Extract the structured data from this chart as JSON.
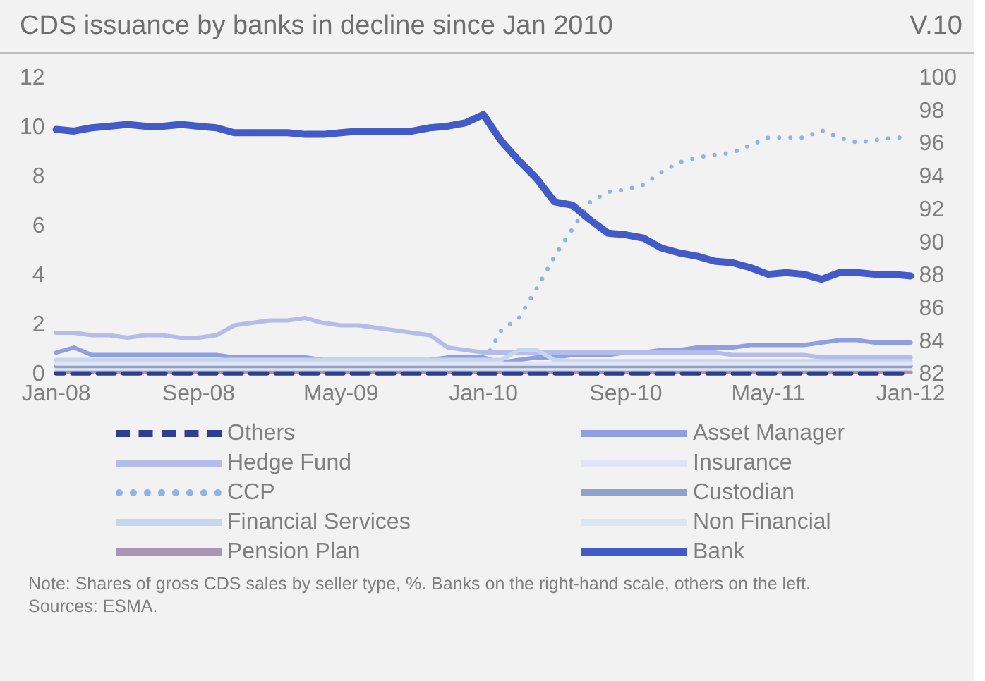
{
  "chart_data": {
    "type": "line",
    "title": "CDS issuance by banks in decline since Jan 2010",
    "subtitle": "V.10",
    "categories": [
      "Jan-08",
      null,
      null,
      null,
      null,
      null,
      null,
      null,
      "Sep-08",
      null,
      null,
      null,
      null,
      null,
      null,
      null,
      "May-09",
      null,
      null,
      null,
      null,
      null,
      null,
      null,
      "Jan-10",
      null,
      null,
      null,
      null,
      null,
      null,
      null,
      "Sep-10",
      null,
      null,
      null,
      null,
      null,
      null,
      null,
      "May-11",
      null,
      null,
      null,
      null,
      null,
      null,
      null,
      "Jan-12"
    ],
    "series": [
      {
        "name": "Others",
        "color": "#2f3f8f",
        "line_style": "dashed",
        "values": [
          0.05,
          0.05,
          0.05,
          0.05,
          0.05,
          0.05,
          0.05,
          0.05,
          0.05,
          0.05,
          0.05,
          0.05,
          0.05,
          0.05,
          0.05,
          0.05,
          0.05,
          0.05,
          0.05,
          0.05,
          0.05,
          0.05,
          0.05,
          0.05,
          0.05,
          0.05,
          0.05,
          0.05,
          0.05,
          0.05,
          0.05,
          0.05,
          0.05,
          0.05,
          0.05,
          0.05,
          0.05,
          0.05,
          0.05,
          0.05,
          0.05,
          0.05,
          0.05,
          0.05,
          0.05,
          0.05,
          0.05,
          0.05,
          0.05
        ]
      },
      {
        "name": "Asset Manager",
        "color": "#8f9fdf",
        "values": [
          0.9,
          1.1,
          0.8,
          0.8,
          0.8,
          0.8,
          0.8,
          0.8,
          0.8,
          0.8,
          0.7,
          0.7,
          0.7,
          0.7,
          0.7,
          0.6,
          0.6,
          0.6,
          0.6,
          0.6,
          0.6,
          0.6,
          0.7,
          0.7,
          0.7,
          0.5,
          0.6,
          0.7,
          0.7,
          0.8,
          0.8,
          0.8,
          0.9,
          0.9,
          1.0,
          1.0,
          1.1,
          1.1,
          1.1,
          1.2,
          1.2,
          1.2,
          1.2,
          1.3,
          1.4,
          1.4,
          1.3,
          1.3,
          1.3
        ]
      },
      {
        "name": "Hedge Fund",
        "color": "#b4bde9",
        "values": [
          1.7,
          1.7,
          1.6,
          1.6,
          1.5,
          1.6,
          1.6,
          1.5,
          1.5,
          1.6,
          2.0,
          2.1,
          2.2,
          2.2,
          2.3,
          2.1,
          2.0,
          2.0,
          1.9,
          1.8,
          1.7,
          1.6,
          1.1,
          1.0,
          0.9,
          0.9,
          0.9,
          0.9,
          0.9,
          0.9,
          0.9,
          0.9,
          0.9,
          0.9,
          0.9,
          0.9,
          0.9,
          0.9,
          0.8,
          0.8,
          0.8,
          0.8,
          0.8,
          0.7,
          0.7,
          0.7,
          0.7,
          0.7,
          0.7
        ]
      },
      {
        "name": "Insurance",
        "color": "#e2e4f6",
        "values": [
          0.45,
          0.45,
          0.45,
          0.45,
          0.45,
          0.45,
          0.45,
          0.45,
          0.45,
          0.45,
          0.45,
          0.45,
          0.45,
          0.45,
          0.45,
          0.45,
          0.45,
          0.45,
          0.45,
          0.45,
          0.45,
          0.45,
          0.45,
          0.45,
          0.45,
          0.45,
          0.45,
          0.45,
          0.45,
          0.45,
          0.45,
          0.45,
          0.45,
          0.45,
          0.45,
          0.45,
          0.45,
          0.45,
          0.45,
          0.45,
          0.45,
          0.45,
          0.45,
          0.45,
          0.45,
          0.45,
          0.45,
          0.45,
          0.45
        ]
      },
      {
        "name": "CCP",
        "color": "#8db4e6",
        "line_style": "dotted",
        "values": [
          0.1,
          0.1,
          0.1,
          0.1,
          0.1,
          0.1,
          0.1,
          0.1,
          0.1,
          0.1,
          0.1,
          0.1,
          0.1,
          0.1,
          0.1,
          0.1,
          0.1,
          0.1,
          0.1,
          0.1,
          0.1,
          0.1,
          0.1,
          0.2,
          0.5,
          1.8,
          2.3,
          3.5,
          4.8,
          5.9,
          7.0,
          7.4,
          7.5,
          7.7,
          8.2,
          8.6,
          8.8,
          8.9,
          9.0,
          9.3,
          9.6,
          9.6,
          9.6,
          9.9,
          9.6,
          9.4,
          9.5,
          9.6,
          9.6
        ]
      },
      {
        "name": "Custodian",
        "color": "#8ea2c8",
        "values": [
          0.35,
          0.35,
          0.35,
          0.35,
          0.35,
          0.35,
          0.35,
          0.35,
          0.35,
          0.35,
          0.35,
          0.35,
          0.35,
          0.35,
          0.35,
          0.35,
          0.35,
          0.35,
          0.35,
          0.35,
          0.35,
          0.35,
          0.35,
          0.35,
          0.35,
          0.35,
          0.35,
          0.35,
          0.35,
          0.35,
          0.35,
          0.35,
          0.35,
          0.35,
          0.35,
          0.35,
          0.35,
          0.35,
          0.35,
          0.35,
          0.35,
          0.35,
          0.35,
          0.35,
          0.35,
          0.35,
          0.35,
          0.35,
          0.35
        ]
      },
      {
        "name": "Financial Services",
        "color": "#c5d7ef",
        "values": [
          0.6,
          0.6,
          0.6,
          0.6,
          0.6,
          0.6,
          0.6,
          0.6,
          0.6,
          0.6,
          0.6,
          0.6,
          0.6,
          0.6,
          0.6,
          0.6,
          0.6,
          0.6,
          0.6,
          0.6,
          0.6,
          0.6,
          0.6,
          0.6,
          0.6,
          0.6,
          1.0,
          1.0,
          0.6,
          0.55,
          0.55,
          0.55,
          0.55,
          0.55,
          0.55,
          0.55,
          0.55,
          0.55,
          0.55,
          0.55,
          0.55,
          0.55,
          0.55,
          0.55,
          0.55,
          0.55,
          0.55,
          0.55,
          0.55
        ]
      },
      {
        "name": "Non Financial",
        "color": "#dce5f0",
        "values": [
          0.25,
          0.25,
          0.25,
          0.25,
          0.25,
          0.25,
          0.25,
          0.25,
          0.25,
          0.25,
          0.25,
          0.25,
          0.25,
          0.25,
          0.25,
          0.25,
          0.25,
          0.25,
          0.25,
          0.25,
          0.25,
          0.25,
          0.25,
          0.25,
          0.25,
          0.25,
          0.25,
          0.25,
          0.25,
          0.25,
          0.25,
          0.25,
          0.25,
          0.25,
          0.25,
          0.25,
          0.25,
          0.25,
          0.25,
          0.25,
          0.25,
          0.25,
          0.25,
          0.25,
          0.25,
          0.25,
          0.25,
          0.25,
          0.25
        ]
      },
      {
        "name": "Pension Plan",
        "color": "#a895b8",
        "values": [
          0.1,
          0.1,
          0.1,
          0.1,
          0.1,
          0.1,
          0.1,
          0.1,
          0.1,
          0.1,
          0.1,
          0.1,
          0.1,
          0.1,
          0.1,
          0.1,
          0.1,
          0.1,
          0.1,
          0.1,
          0.1,
          0.1,
          0.1,
          0.1,
          0.1,
          0.1,
          0.1,
          0.1,
          0.1,
          0.1,
          0.1,
          0.1,
          0.1,
          0.1,
          0.1,
          0.1,
          0.1,
          0.1,
          0.1,
          0.1,
          0.1,
          0.1,
          0.1,
          0.1,
          0.1,
          0.1,
          0.1,
          0.1,
          0.1
        ]
      },
      {
        "name": "Bank",
        "color": "#435bc9",
        "axis": "y2",
        "values": [
          96.9,
          96.8,
          97.0,
          97.1,
          97.2,
          97.1,
          97.1,
          97.2,
          97.1,
          97.0,
          96.7,
          96.7,
          96.7,
          96.7,
          96.6,
          96.6,
          96.7,
          96.8,
          96.8,
          96.8,
          96.8,
          97.0,
          97.1,
          97.3,
          97.8,
          96.2,
          95.0,
          93.9,
          92.5,
          92.3,
          91.4,
          90.6,
          90.5,
          90.3,
          89.7,
          89.4,
          89.2,
          88.9,
          88.8,
          88.5,
          88.1,
          88.2,
          88.1,
          87.8,
          88.2,
          88.2,
          88.1,
          88.1,
          88.0
        ]
      }
    ],
    "ylim": [
      0,
      12
    ],
    "yticks": [
      0,
      2,
      4,
      6,
      8,
      10,
      12
    ],
    "y2lim": [
      82,
      100
    ],
    "y2ticks": [
      82,
      84,
      86,
      88,
      90,
      92,
      94,
      96,
      98,
      100
    ],
    "grid": false,
    "legend": "bottom",
    "marker": "none",
    "annotations": [
      "Note: Shares of gross CDS sales by seller type, %. Banks on the right-hand scale, others on the left.",
      "Sources: ESMA."
    ]
  }
}
